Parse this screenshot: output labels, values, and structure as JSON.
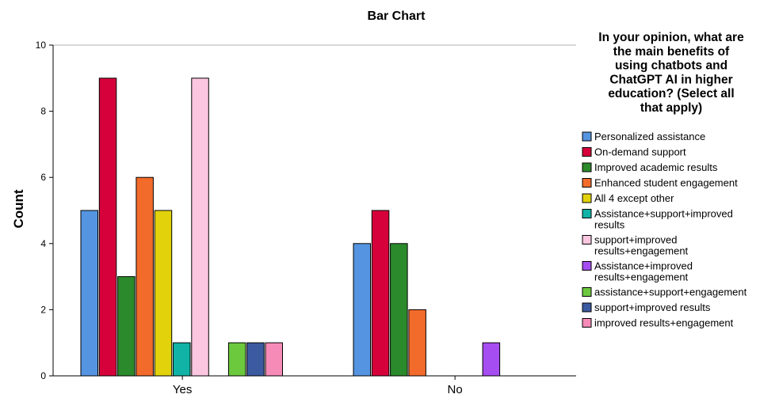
{
  "chart_data": {
    "type": "bar",
    "title": "Bar Chart",
    "ylabel": "Count",
    "xlabel": "",
    "ylim": [
      0,
      10
    ],
    "yticks": [
      0,
      2,
      4,
      6,
      8,
      10
    ],
    "grid": false,
    "legend_placement": "right",
    "legend_title": [
      "In your opinion, what are",
      "the main benefits of",
      "using chatbots and",
      "ChatGPT AI in higher",
      "education? (Select all",
      "that apply)"
    ],
    "categories": [
      "Yes",
      "No"
    ],
    "series": [
      {
        "name": "Personalized assistance",
        "name_lines": [
          "Personalized assistance"
        ],
        "color": "#5594e0",
        "values": [
          5,
          4
        ]
      },
      {
        "name": "On-demand support",
        "name_lines": [
          "On-demand support"
        ],
        "color": "#d6003a",
        "values": [
          9,
          5
        ]
      },
      {
        "name": "Improved academic results",
        "name_lines": [
          "Improved academic results"
        ],
        "color": "#2b8a2b",
        "values": [
          3,
          4
        ]
      },
      {
        "name": "Enhanced student engagement",
        "name_lines": [
          "Enhanced student engagement"
        ],
        "color": "#f26b2b",
        "values": [
          6,
          2
        ]
      },
      {
        "name": "All 4 except other",
        "name_lines": [
          "All 4 except other"
        ],
        "color": "#e2d20c",
        "values": [
          5,
          0
        ]
      },
      {
        "name": "Assistance+support+improved results",
        "name_lines": [
          "Assistance+support+improved",
          "results"
        ],
        "color": "#11b3a6",
        "values": [
          1,
          0
        ]
      },
      {
        "name": "support+improved results+engagement",
        "name_lines": [
          "support+improved",
          "results+engagement"
        ],
        "color": "#fbc6e0",
        "values": [
          9,
          0
        ]
      },
      {
        "name": "Assistance+improved results+engagement",
        "name_lines": [
          "Assistance+improved",
          "results+engagement"
        ],
        "color": "#a64df2",
        "values": [
          0,
          1
        ]
      },
      {
        "name": "assistance+support+engagement",
        "name_lines": [
          "assistance+support+engagement"
        ],
        "color": "#6cc93e",
        "values": [
          1,
          0
        ]
      },
      {
        "name": "support+improved results",
        "name_lines": [
          "support+improved results"
        ],
        "color": "#3c5aa0",
        "values": [
          1,
          0
        ]
      },
      {
        "name": "improved results+engagement",
        "name_lines": [
          "improved results+engagement"
        ],
        "color": "#f78bb8",
        "values": [
          1,
          0
        ]
      }
    ]
  }
}
